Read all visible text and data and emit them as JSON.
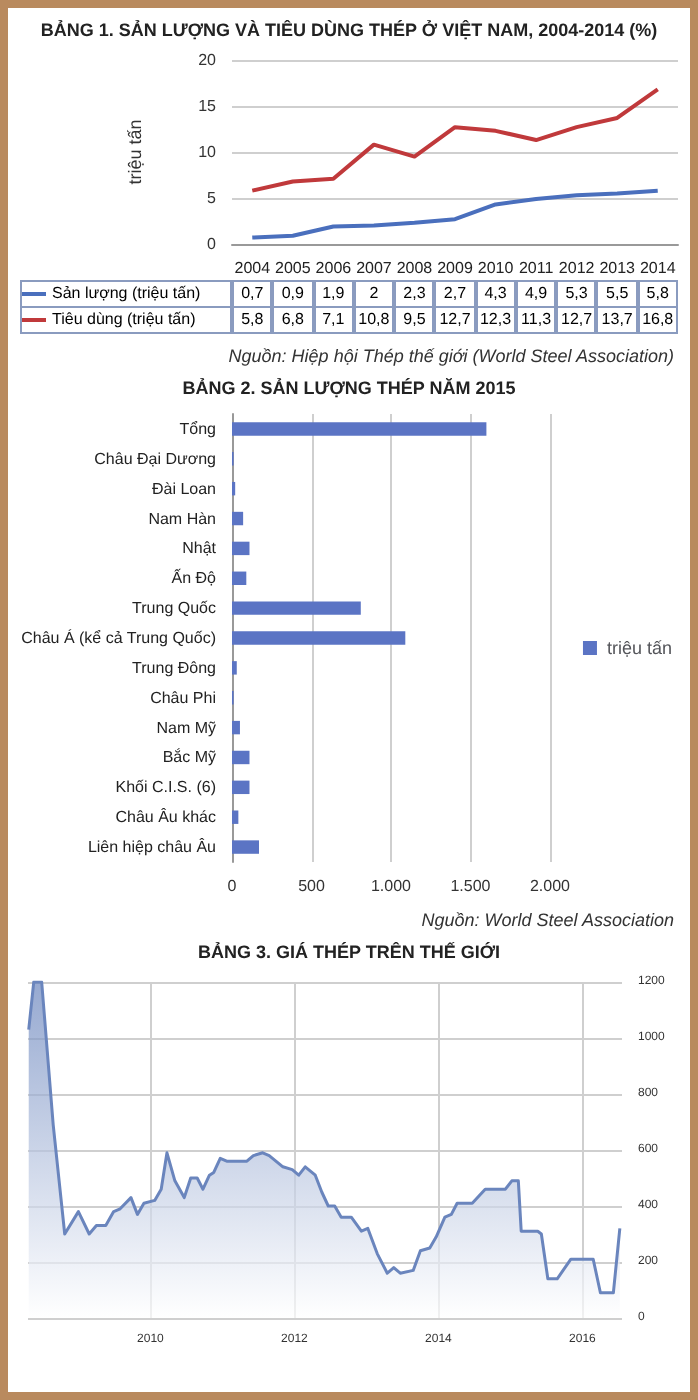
{
  "chart_data": [
    {
      "type": "line",
      "title": "BẢNG 1. SẢN LƯỢNG VÀ TIÊU DÙNG THÉP Ở VIỆT NAM, 2004-2014 (%)",
      "ylabel": "triệu tấn",
      "categories": [
        "2004",
        "2005",
        "2006",
        "2007",
        "2008",
        "2009",
        "2010",
        "2011",
        "2012",
        "2013",
        "2014"
      ],
      "series": [
        {
          "name": "Sản lượng (triệu tấn)",
          "color": "#4a6fbd",
          "values": [
            0.7,
            0.9,
            1.9,
            2,
            2.3,
            2.7,
            4.3,
            4.9,
            5.3,
            5.5,
            5.8
          ],
          "value_labels": [
            "0,7",
            "0,9",
            "1,9",
            "2",
            "2,3",
            "2,7",
            "4,3",
            "4,9",
            "5,3",
            "5,5",
            "5,8"
          ]
        },
        {
          "name": "Tiêu dùng (triệu tấn)",
          "color": "#c0393b",
          "values": [
            5.8,
            6.8,
            7.1,
            10.8,
            9.5,
            12.7,
            12.3,
            11.3,
            12.7,
            13.7,
            16.8
          ],
          "value_labels": [
            "5,8",
            "6,8",
            "7,1",
            "10,8",
            "9,5",
            "12,7",
            "12,3",
            "11,3",
            "12,7",
            "13,7",
            "16,8"
          ]
        }
      ],
      "ylim": [
        0,
        20
      ],
      "yticks": [
        0,
        5,
        10,
        15,
        20
      ],
      "grid": "y",
      "legend": "bottom",
      "marker": "none",
      "annotations": [
        "Nguồn: Hiệp hội Thép thế giới (World Steel Association)"
      ]
    },
    {
      "type": "bar",
      "orientation": "horizontal",
      "title": "BẢNG 2. SẢN LƯỢNG THÉP NĂM 2015",
      "categories": [
        "Tổng",
        "Châu Đại Dương",
        "Đài Loan",
        "Nam Hàn",
        "Nhật",
        "Ấn Độ",
        "Trung Quốc",
        "Châu Á (kể cả Trung Quốc)",
        "Trung Đông",
        "Châu Phi",
        "Nam Mỹ",
        "Bắc Mỹ",
        "Khối C.I.S. (6)",
        "Châu Âu khác",
        "Liên hiệp châu Âu"
      ],
      "series": [
        {
          "name": "triệu tấn",
          "color": "#5b74c4",
          "values": [
            1600,
            10,
            20,
            70,
            110,
            90,
            810,
            1090,
            30,
            10,
            50,
            110,
            110,
            40,
            170
          ]
        }
      ],
      "xlim": [
        0,
        2000
      ],
      "xticks": [
        0,
        500,
        {
          "value": 1000,
          "label": "1.000"
        },
        {
          "value": 1500,
          "label": "1.500"
        },
        {
          "value": 2000,
          "label": "2.000"
        }
      ],
      "grid": "x",
      "legend": "right",
      "annotations": [
        "Nguồn: World Steel Association"
      ]
    },
    {
      "type": "area",
      "title": "BẢNG 3. GIÁ THÉP TRÊN THẾ GIỚI",
      "series": [
        {
          "color": "#6a85bd",
          "x": [
            2008.31,
            2008.38,
            2008.49,
            2008.65,
            2008.81,
            2009.0,
            2009.15,
            2009.25,
            2009.38,
            2009.49,
            2009.58,
            2009.73,
            2009.82,
            2009.91,
            2010.06,
            2010.15,
            2010.23,
            2010.34,
            2010.47,
            2010.56,
            2010.65,
            2010.73,
            2010.82,
            2010.88,
            2010.97,
            2011.06,
            2011.34,
            2011.43,
            2011.56,
            2011.65,
            2011.84,
            2011.97,
            2012.06,
            2012.15,
            2012.29,
            2012.38,
            2012.47,
            2012.56,
            2012.65,
            2012.79,
            2012.93,
            2013.02,
            2013.15,
            2013.29,
            2013.38,
            2013.47,
            2013.65,
            2013.75,
            2013.88,
            2013.97,
            2014.09,
            2014.18,
            2014.26,
            2014.47,
            2014.65,
            2014.93,
            2015.02,
            2015.11,
            2015.15,
            2015.38,
            2015.43,
            2015.52,
            2015.65,
            2015.84,
            2016.15,
            2016.25,
            2016.43,
            2016.52
          ],
          "values": [
            1030,
            1200,
            1200,
            690,
            300,
            380,
            300,
            330,
            330,
            380,
            390,
            430,
            370,
            410,
            420,
            460,
            590,
            490,
            430,
            500,
            500,
            460,
            510,
            520,
            570,
            560,
            560,
            580,
            590,
            580,
            540,
            530,
            510,
            540,
            510,
            450,
            400,
            400,
            360,
            360,
            310,
            320,
            230,
            160,
            180,
            160,
            170,
            240,
            250,
            290,
            360,
            370,
            410,
            410,
            460,
            460,
            490,
            490,
            310,
            310,
            300,
            140,
            140,
            210,
            210,
            90,
            90,
            320
          ]
        }
      ],
      "xlim": [
        2008.3,
        2016.55
      ],
      "xticks": [
        2010,
        2012,
        2014,
        2016
      ],
      "ylim": [
        0,
        1200
      ],
      "yticks": [
        0,
        200,
        400,
        600,
        800,
        1000,
        1200
      ],
      "grid": true
    }
  ]
}
